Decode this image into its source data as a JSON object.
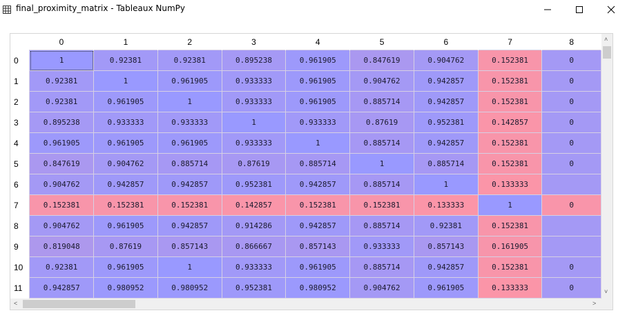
{
  "window": {
    "title": "final_proximity_matrix - Tableaux NumPy",
    "icon": "grid-icon"
  },
  "colors": {
    "low": "#fb95a8",
    "high": "#9999ff"
  },
  "table": {
    "columns": [
      "0",
      "1",
      "2",
      "3",
      "4",
      "5",
      "6",
      "7",
      "8"
    ],
    "rows": [
      {
        "label": "0",
        "values": [
          "1",
          "0.92381",
          "0.92381",
          "0.895238",
          "0.961905",
          "0.847619",
          "0.904762",
          "0.152381",
          "0"
        ]
      },
      {
        "label": "1",
        "values": [
          "0.92381",
          "1",
          "0.961905",
          "0.933333",
          "0.961905",
          "0.904762",
          "0.942857",
          "0.152381",
          "0"
        ]
      },
      {
        "label": "2",
        "values": [
          "0.92381",
          "0.961905",
          "1",
          "0.933333",
          "0.961905",
          "0.885714",
          "0.942857",
          "0.152381",
          "0"
        ]
      },
      {
        "label": "3",
        "values": [
          "0.895238",
          "0.933333",
          "0.933333",
          "1",
          "0.933333",
          "0.87619",
          "0.952381",
          "0.142857",
          "0"
        ]
      },
      {
        "label": "4",
        "values": [
          "0.961905",
          "0.961905",
          "0.961905",
          "0.933333",
          "1",
          "0.885714",
          "0.942857",
          "0.152381",
          "0"
        ]
      },
      {
        "label": "5",
        "values": [
          "0.847619",
          "0.904762",
          "0.885714",
          "0.87619",
          "0.885714",
          "1",
          "0.885714",
          "0.152381",
          "0"
        ]
      },
      {
        "label": "6",
        "values": [
          "0.904762",
          "0.942857",
          "0.942857",
          "0.952381",
          "0.942857",
          "0.885714",
          "1",
          "0.133333",
          ""
        ]
      },
      {
        "label": "7",
        "values": [
          "0.152381",
          "0.152381",
          "0.152381",
          "0.142857",
          "0.152381",
          "0.152381",
          "0.133333",
          "1",
          "0"
        ]
      },
      {
        "label": "8",
        "values": [
          "0.904762",
          "0.961905",
          "0.942857",
          "0.914286",
          "0.942857",
          "0.885714",
          "0.92381",
          "0.152381",
          ""
        ]
      },
      {
        "label": "9",
        "values": [
          "0.819048",
          "0.87619",
          "0.857143",
          "0.866667",
          "0.857143",
          "0.933333",
          "0.857143",
          "0.161905",
          ""
        ]
      },
      {
        "label": "10",
        "values": [
          "0.92381",
          "0.961905",
          "1",
          "0.933333",
          "0.961905",
          "0.885714",
          "0.942857",
          "0.152381",
          "0"
        ]
      },
      {
        "label": "11",
        "values": [
          "0.942857",
          "0.980952",
          "0.980952",
          "0.952381",
          "0.980952",
          "0.904762",
          "0.961905",
          "0.133333",
          "0"
        ]
      }
    ],
    "cell_value_fraction": [
      [
        1,
        0.92381,
        0.92381,
        0.895238,
        0.961905,
        0.847619,
        0.904762,
        0.152381,
        0.9
      ],
      [
        0.92381,
        1,
        0.961905,
        0.933333,
        0.961905,
        0.904762,
        0.942857,
        0.152381,
        0.9
      ],
      [
        0.92381,
        0.961905,
        1,
        0.933333,
        0.961905,
        0.885714,
        0.942857,
        0.152381,
        0.9
      ],
      [
        0.895238,
        0.933333,
        0.933333,
        1,
        0.933333,
        0.87619,
        0.952381,
        0.142857,
        0.9
      ],
      [
        0.961905,
        0.961905,
        0.961905,
        0.933333,
        1,
        0.885714,
        0.942857,
        0.152381,
        0.9
      ],
      [
        0.847619,
        0.904762,
        0.885714,
        0.87619,
        0.885714,
        1,
        0.885714,
        0.152381,
        0.9
      ],
      [
        0.904762,
        0.942857,
        0.942857,
        0.952381,
        0.942857,
        0.885714,
        1,
        0.133333,
        0.9
      ],
      [
        0.152381,
        0.152381,
        0.152381,
        0.142857,
        0.152381,
        0.152381,
        0.133333,
        1,
        0.15
      ],
      [
        0.904762,
        0.961905,
        0.942857,
        0.914286,
        0.942857,
        0.885714,
        0.92381,
        0.152381,
        0.9
      ],
      [
        0.819048,
        0.87619,
        0.857143,
        0.866667,
        0.857143,
        0.933333,
        0.857143,
        0.161905,
        0.9
      ],
      [
        0.92381,
        0.961905,
        1,
        0.933333,
        0.961905,
        0.885714,
        0.942857,
        0.152381,
        0.9
      ],
      [
        0.942857,
        0.980952,
        0.980952,
        0.952381,
        0.980952,
        0.904762,
        0.961905,
        0.133333,
        0.9
      ]
    ]
  },
  "selected_cell": {
    "row": 0,
    "col": 0
  }
}
